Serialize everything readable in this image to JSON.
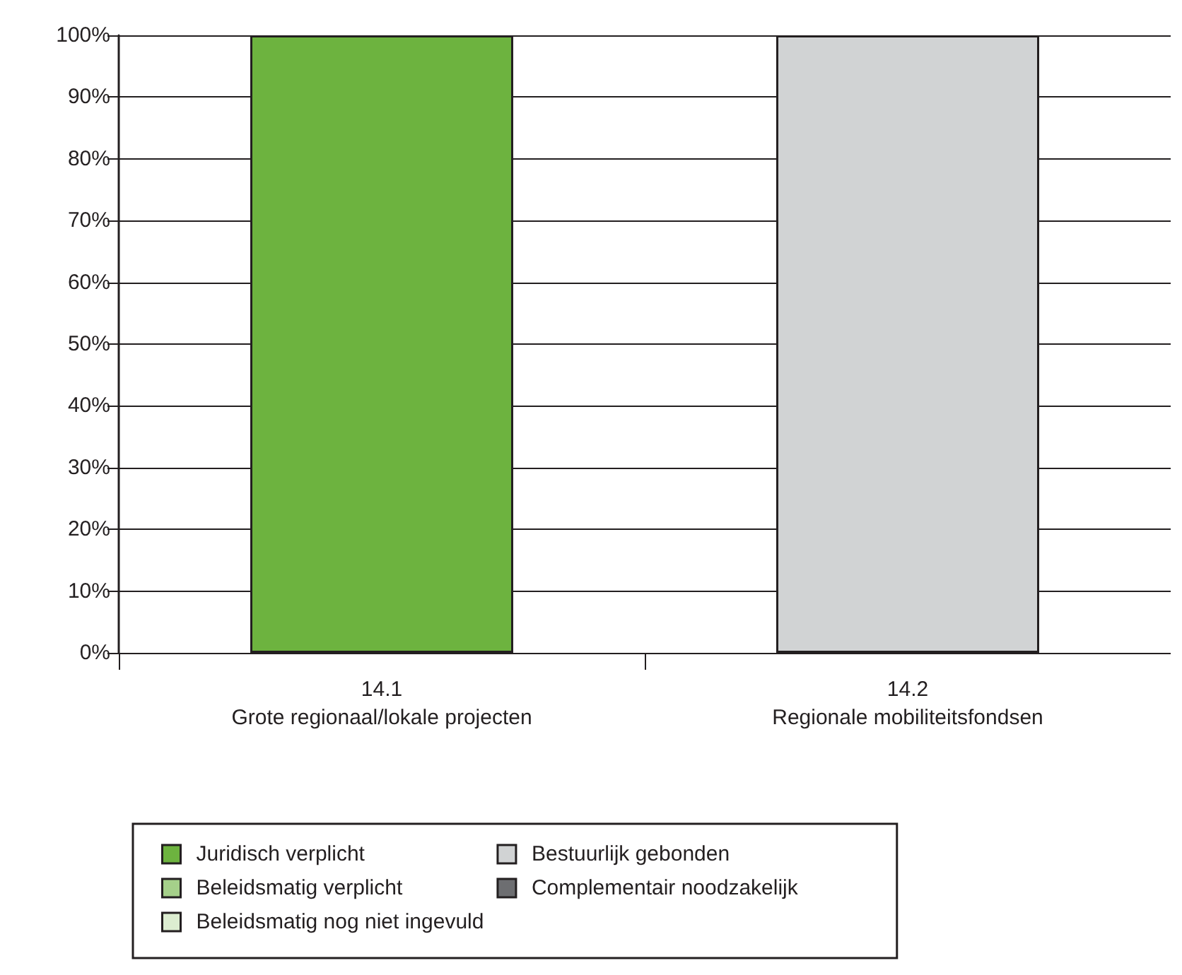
{
  "chart_data": {
    "type": "bar",
    "stacked": true,
    "categories": [
      "14.1\nGrote regionaal/lokale projecten",
      "14.2\nRegionale mobiliteitsfondsen"
    ],
    "series": [
      {
        "name": "Juridisch verplicht",
        "color": "#6db33f",
        "values": [
          100,
          0
        ]
      },
      {
        "name": "Beleidsmatig verplicht",
        "color": "#a5d08a",
        "values": [
          0,
          0
        ]
      },
      {
        "name": "Beleidsmatig nog niet ingevuld",
        "color": "#dcedd0",
        "values": [
          0,
          0
        ]
      },
      {
        "name": "Bestuurlijk gebonden",
        "color": "#d1d3d4",
        "values": [
          0,
          100
        ]
      },
      {
        "name": "Complementair noodzakelijk",
        "color": "#6d6e71",
        "values": [
          0,
          0
        ]
      }
    ],
    "ylim": [
      0,
      100
    ],
    "yticks": [
      {
        "value": 0,
        "label": "0%"
      },
      {
        "value": 10,
        "label": "10%"
      },
      {
        "value": 20,
        "label": "20%"
      },
      {
        "value": 30,
        "label": "30%"
      },
      {
        "value": 40,
        "label": "40%"
      },
      {
        "value": 50,
        "label": "50%"
      },
      {
        "value": 60,
        "label": "60%"
      },
      {
        "value": 70,
        "label": "70%"
      },
      {
        "value": 80,
        "label": "80%"
      },
      {
        "value": 90,
        "label": "90%"
      },
      {
        "value": 100,
        "label": "100%"
      }
    ],
    "grid": "y",
    "legend": "bottom"
  }
}
